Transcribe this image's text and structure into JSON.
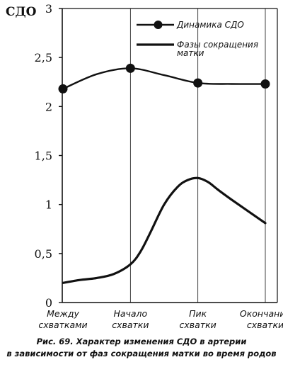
{
  "chart_data": {
    "type": "line",
    "ylabel": "СДО",
    "ylim": [
      0,
      3
    ],
    "yticks": [
      "0",
      "0,5",
      "1",
      "1,5",
      "2",
      "2,5",
      "3"
    ],
    "yticks_values": [
      0,
      0.5,
      1,
      1.5,
      2,
      2.5,
      3
    ],
    "categories": [
      [
        "Между",
        "схватками"
      ],
      [
        "Начало",
        "схватки"
      ],
      [
        "Пик",
        "схватки"
      ],
      [
        "Окончание",
        "схватки"
      ]
    ],
    "grid": "vertical lines at categories",
    "legend_position": "top-right",
    "legend": [
      {
        "series": 0,
        "lines": [
          "Динамика СДО"
        ]
      },
      {
        "series": 1,
        "lines": [
          "Фазы сокращения",
          "матки"
        ]
      }
    ],
    "series": [
      {
        "key": "sdo",
        "marker": "circle",
        "color": "#111111",
        "x": [
          0,
          1,
          2,
          3
        ],
        "values": [
          2.18,
          2.39,
          2.24,
          2.23
        ],
        "curve_x": [
          0,
          0.5,
          1,
          1.5,
          2,
          2.5,
          3
        ],
        "curve_y": [
          2.18,
          2.33,
          2.39,
          2.32,
          2.24,
          2.23,
          2.23
        ]
      },
      {
        "key": "phases",
        "marker": "none",
        "color": "#111111",
        "curve_x": [
          0,
          0.25,
          0.5,
          0.75,
          1,
          1.15,
          1.3,
          1.5,
          1.7,
          1.85,
          2,
          2.15,
          2.3,
          2.5,
          2.75,
          3
        ],
        "curve_y": [
          0.2,
          0.23,
          0.25,
          0.29,
          0.39,
          0.52,
          0.72,
          1.0,
          1.18,
          1.25,
          1.27,
          1.23,
          1.15,
          1.05,
          0.93,
          0.81
        ]
      }
    ]
  },
  "caption": {
    "line1": "Рис. 69.  Характер изменения СДО в артерии",
    "line2": "в зависимости от фаз сокращения матки во время родов"
  }
}
